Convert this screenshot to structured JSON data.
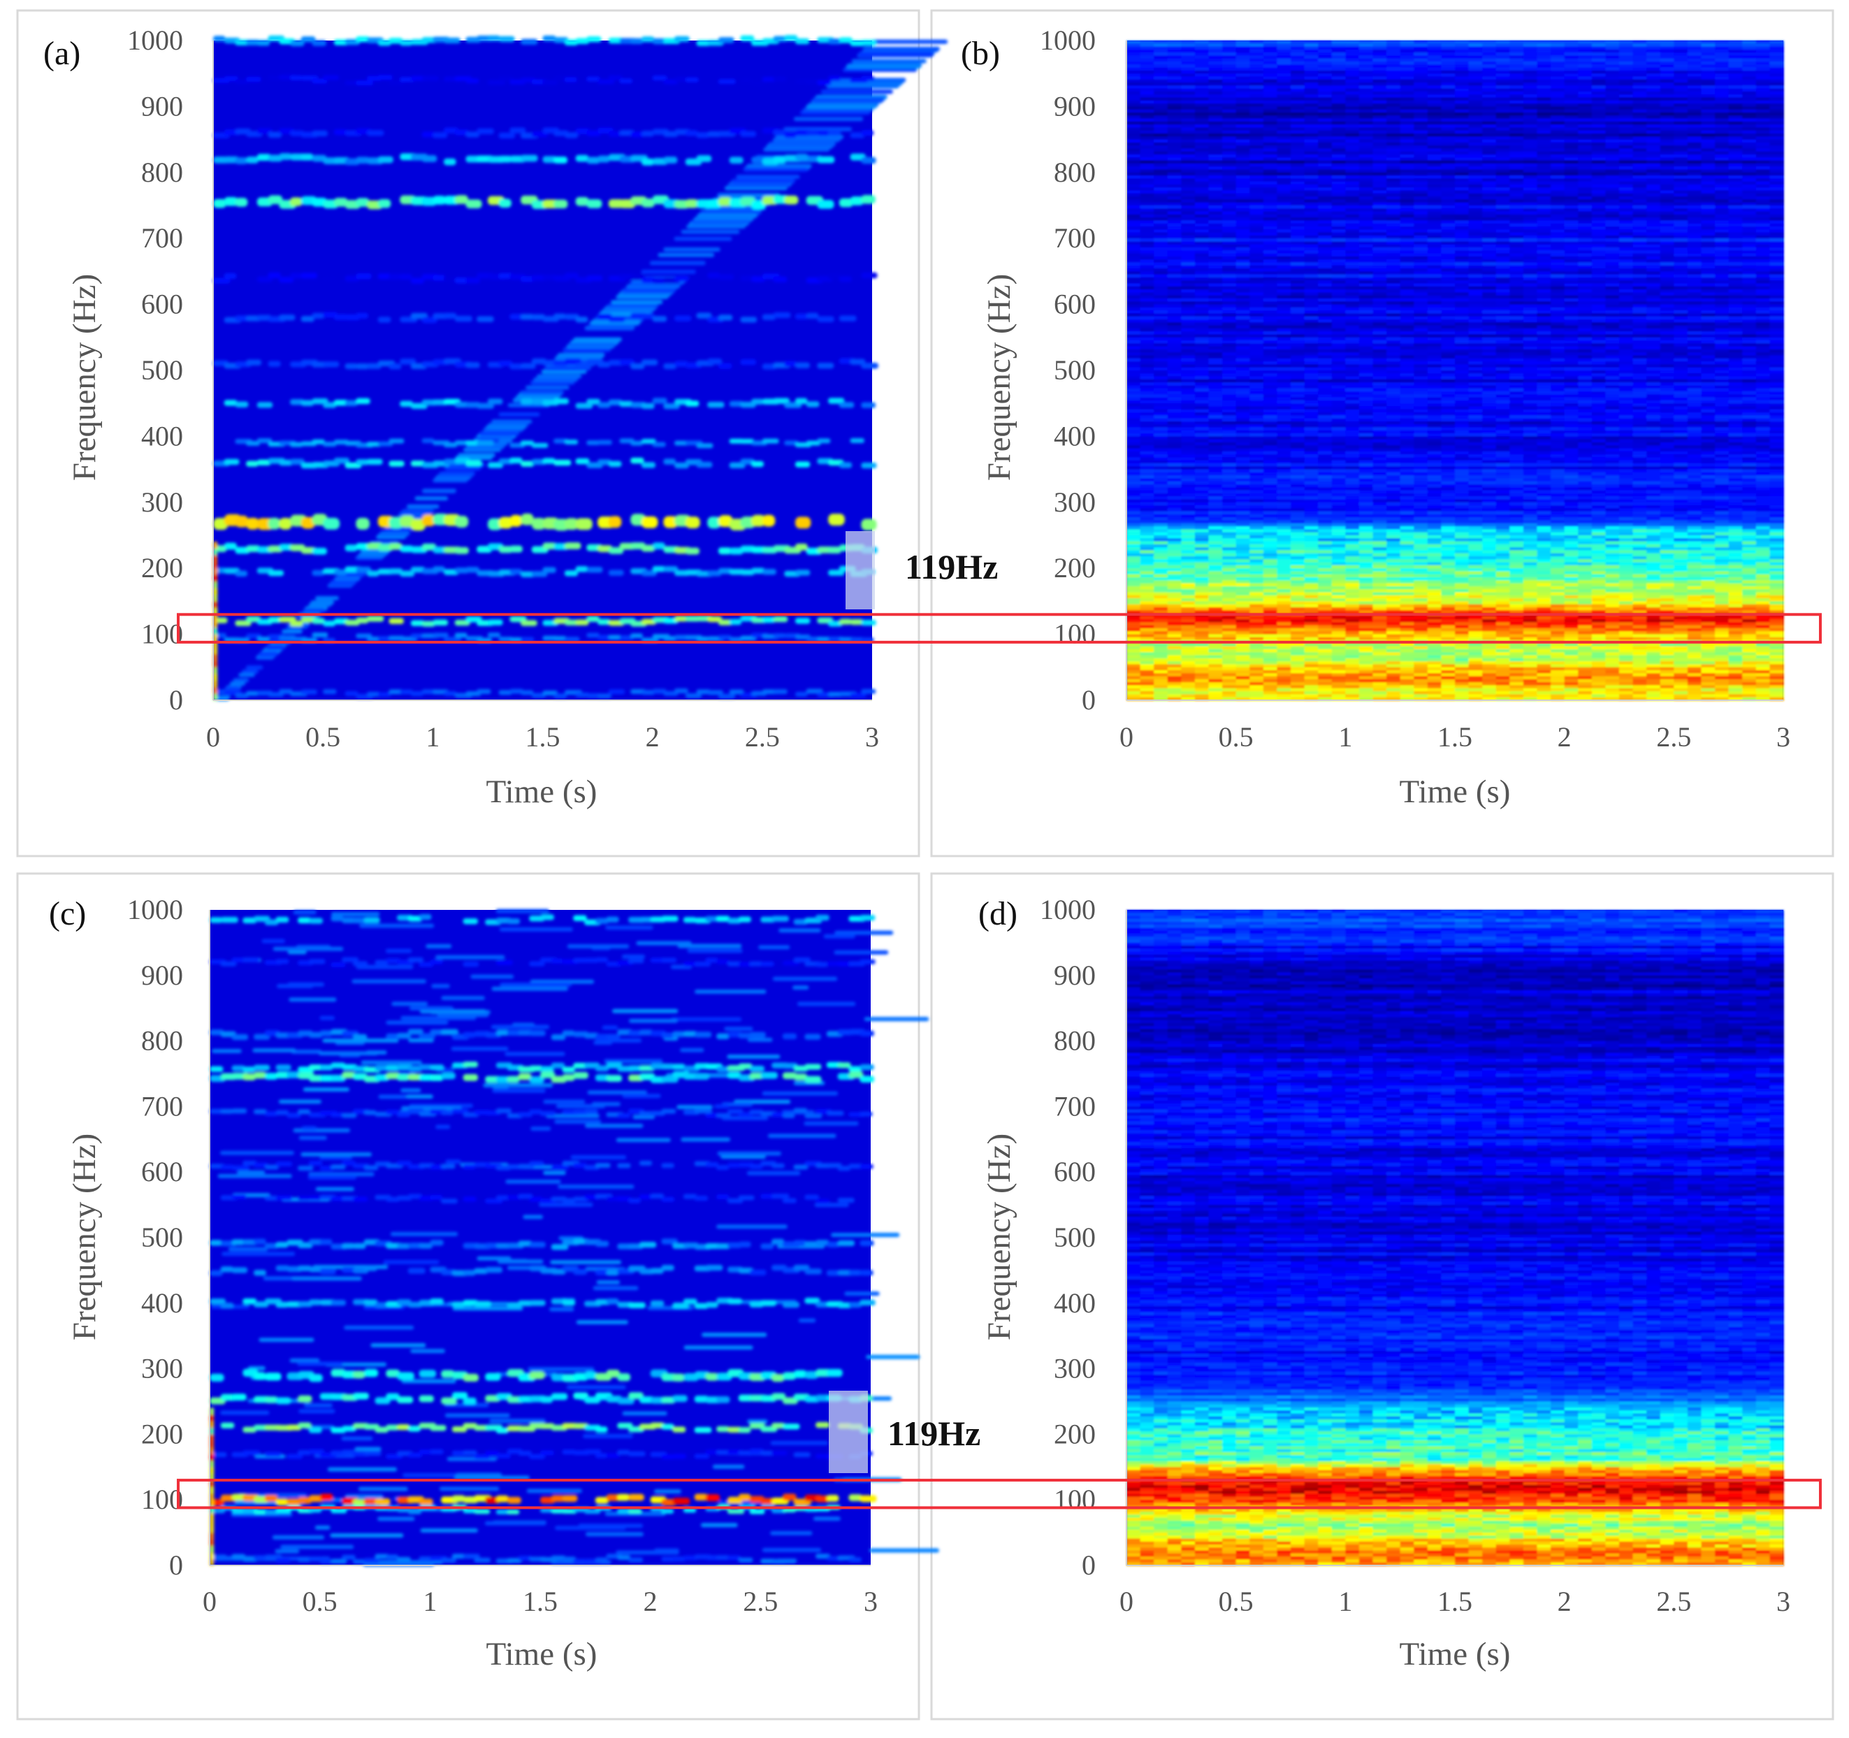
{
  "chart_data": [
    {
      "type": "heatmap",
      "panel_label": "(a)",
      "xlabel": "Time (s)",
      "ylabel": "Frequency (Hz)",
      "xlim": [
        0,
        3
      ],
      "ylim": [
        0,
        1000
      ],
      "x_ticks": [
        "0",
        "0.5",
        "1",
        "1.5",
        "2",
        "2.5",
        "3"
      ],
      "y_ticks": [
        "0",
        "100",
        "200",
        "300",
        "400",
        "500",
        "600",
        "700",
        "800",
        "900",
        "1000"
      ],
      "style": "sparse",
      "bands": [
        {
          "f": 1000,
          "i": 0.3,
          "w": 6
        },
        {
          "f": 940,
          "i": 0.12,
          "w": 5
        },
        {
          "f": 860,
          "i": 0.15,
          "w": 6
        },
        {
          "f": 820,
          "i": 0.3,
          "w": 7
        },
        {
          "f": 755,
          "i": 0.45,
          "w": 9
        },
        {
          "f": 640,
          "i": 0.12,
          "w": 6
        },
        {
          "f": 580,
          "i": 0.18,
          "w": 6
        },
        {
          "f": 510,
          "i": 0.18,
          "w": 6
        },
        {
          "f": 450,
          "i": 0.3,
          "w": 6
        },
        {
          "f": 390,
          "i": 0.28,
          "w": 5
        },
        {
          "f": 360,
          "i": 0.32,
          "w": 6
        },
        {
          "f": 270,
          "i": 0.55,
          "w": 12
        },
        {
          "f": 230,
          "i": 0.42,
          "w": 7
        },
        {
          "f": 195,
          "i": 0.28,
          "w": 6
        },
        {
          "f": 120,
          "i": 0.45,
          "w": 6
        },
        {
          "f": 95,
          "i": 0.22,
          "w": 5
        },
        {
          "f": 10,
          "i": 0.2,
          "w": 5
        }
      ],
      "annotation": "119Hz",
      "highlight_hz": [
        88,
        130
      ]
    },
    {
      "type": "heatmap",
      "panel_label": "(b)",
      "xlabel": "Time (s)",
      "ylabel": "Frequency (Hz)",
      "xlim": [
        0,
        3
      ],
      "ylim": [
        0,
        1000
      ],
      "x_ticks": [
        "0",
        "0.5",
        "1",
        "1.5",
        "2",
        "2.5",
        "3"
      ],
      "y_ticks": [
        "0",
        "100",
        "200",
        "300",
        "400",
        "500",
        "600",
        "700",
        "800",
        "900",
        "1000"
      ],
      "style": "dense",
      "profile": [
        [
          0,
          0.62
        ],
        [
          20,
          0.66
        ],
        [
          35,
          0.76
        ],
        [
          50,
          0.64
        ],
        [
          70,
          0.52
        ],
        [
          85,
          0.6
        ],
        [
          100,
          0.7
        ],
        [
          110,
          0.8
        ],
        [
          120,
          0.88
        ],
        [
          130,
          0.86
        ],
        [
          145,
          0.62
        ],
        [
          165,
          0.55
        ],
        [
          190,
          0.48
        ],
        [
          220,
          0.4
        ],
        [
          260,
          0.32
        ],
        [
          275,
          0.15
        ],
        [
          300,
          0.14
        ],
        [
          400,
          0.12
        ],
        [
          600,
          0.1
        ],
        [
          700,
          0.14
        ],
        [
          800,
          0.08
        ],
        [
          900,
          0.07
        ],
        [
          1000,
          0.18
        ]
      ],
      "highlight_hz": [
        88,
        130
      ]
    },
    {
      "type": "heatmap",
      "panel_label": "(c)",
      "xlabel": "Time (s)",
      "ylabel": "Frequency (Hz)",
      "xlim": [
        0,
        3
      ],
      "ylim": [
        0,
        1000
      ],
      "x_ticks": [
        "0",
        "0.5",
        "1",
        "1.5",
        "2",
        "2.5",
        "3"
      ],
      "y_ticks": [
        "0",
        "100",
        "200",
        "300",
        "400",
        "500",
        "600",
        "700",
        "800",
        "900",
        "1000"
      ],
      "style": "sparse",
      "bands": [
        {
          "f": 985,
          "i": 0.3,
          "w": 6
        },
        {
          "f": 920,
          "i": 0.15,
          "w": 5
        },
        {
          "f": 810,
          "i": 0.22,
          "w": 6
        },
        {
          "f": 760,
          "i": 0.35,
          "w": 6
        },
        {
          "f": 745,
          "i": 0.4,
          "w": 7
        },
        {
          "f": 690,
          "i": 0.18,
          "w": 5
        },
        {
          "f": 610,
          "i": 0.18,
          "w": 5
        },
        {
          "f": 560,
          "i": 0.15,
          "w": 5
        },
        {
          "f": 490,
          "i": 0.25,
          "w": 6
        },
        {
          "f": 450,
          "i": 0.22,
          "w": 6
        },
        {
          "f": 400,
          "i": 0.3,
          "w": 6
        },
        {
          "f": 290,
          "i": 0.4,
          "w": 8
        },
        {
          "f": 255,
          "i": 0.38,
          "w": 7
        },
        {
          "f": 210,
          "i": 0.45,
          "w": 6
        },
        {
          "f": 170,
          "i": 0.15,
          "w": 5
        },
        {
          "f": 100,
          "i": 0.72,
          "w": 7
        },
        {
          "f": 85,
          "i": 0.35,
          "w": 5
        },
        {
          "f": 10,
          "i": 0.2,
          "w": 5
        }
      ],
      "annotation": "119Hz",
      "highlight_hz": [
        88,
        130
      ]
    },
    {
      "type": "heatmap",
      "panel_label": "(d)",
      "xlabel": "Time (s)",
      "ylabel": "Frequency (Hz)",
      "xlim": [
        0,
        3
      ],
      "ylim": [
        0,
        1000
      ],
      "x_ticks": [
        "0",
        "0.5",
        "1",
        "1.5",
        "2",
        "2.5",
        "3"
      ],
      "y_ticks": [
        "0",
        "100",
        "200",
        "300",
        "400",
        "500",
        "600",
        "700",
        "800",
        "900",
        "1000"
      ],
      "style": "dense",
      "profile": [
        [
          0,
          0.68
        ],
        [
          20,
          0.78
        ],
        [
          40,
          0.62
        ],
        [
          60,
          0.5
        ],
        [
          80,
          0.62
        ],
        [
          95,
          0.76
        ],
        [
          110,
          0.86
        ],
        [
          125,
          0.9
        ],
        [
          140,
          0.78
        ],
        [
          160,
          0.45
        ],
        [
          200,
          0.4
        ],
        [
          220,
          0.34
        ],
        [
          240,
          0.3
        ],
        [
          260,
          0.2
        ],
        [
          300,
          0.14
        ],
        [
          400,
          0.14
        ],
        [
          500,
          0.1
        ],
        [
          600,
          0.1
        ],
        [
          700,
          0.14
        ],
        [
          800,
          0.08
        ],
        [
          900,
          0.07
        ],
        [
          990,
          0.2
        ],
        [
          1000,
          0.16
        ]
      ],
      "highlight_hz": [
        88,
        130
      ]
    }
  ]
}
